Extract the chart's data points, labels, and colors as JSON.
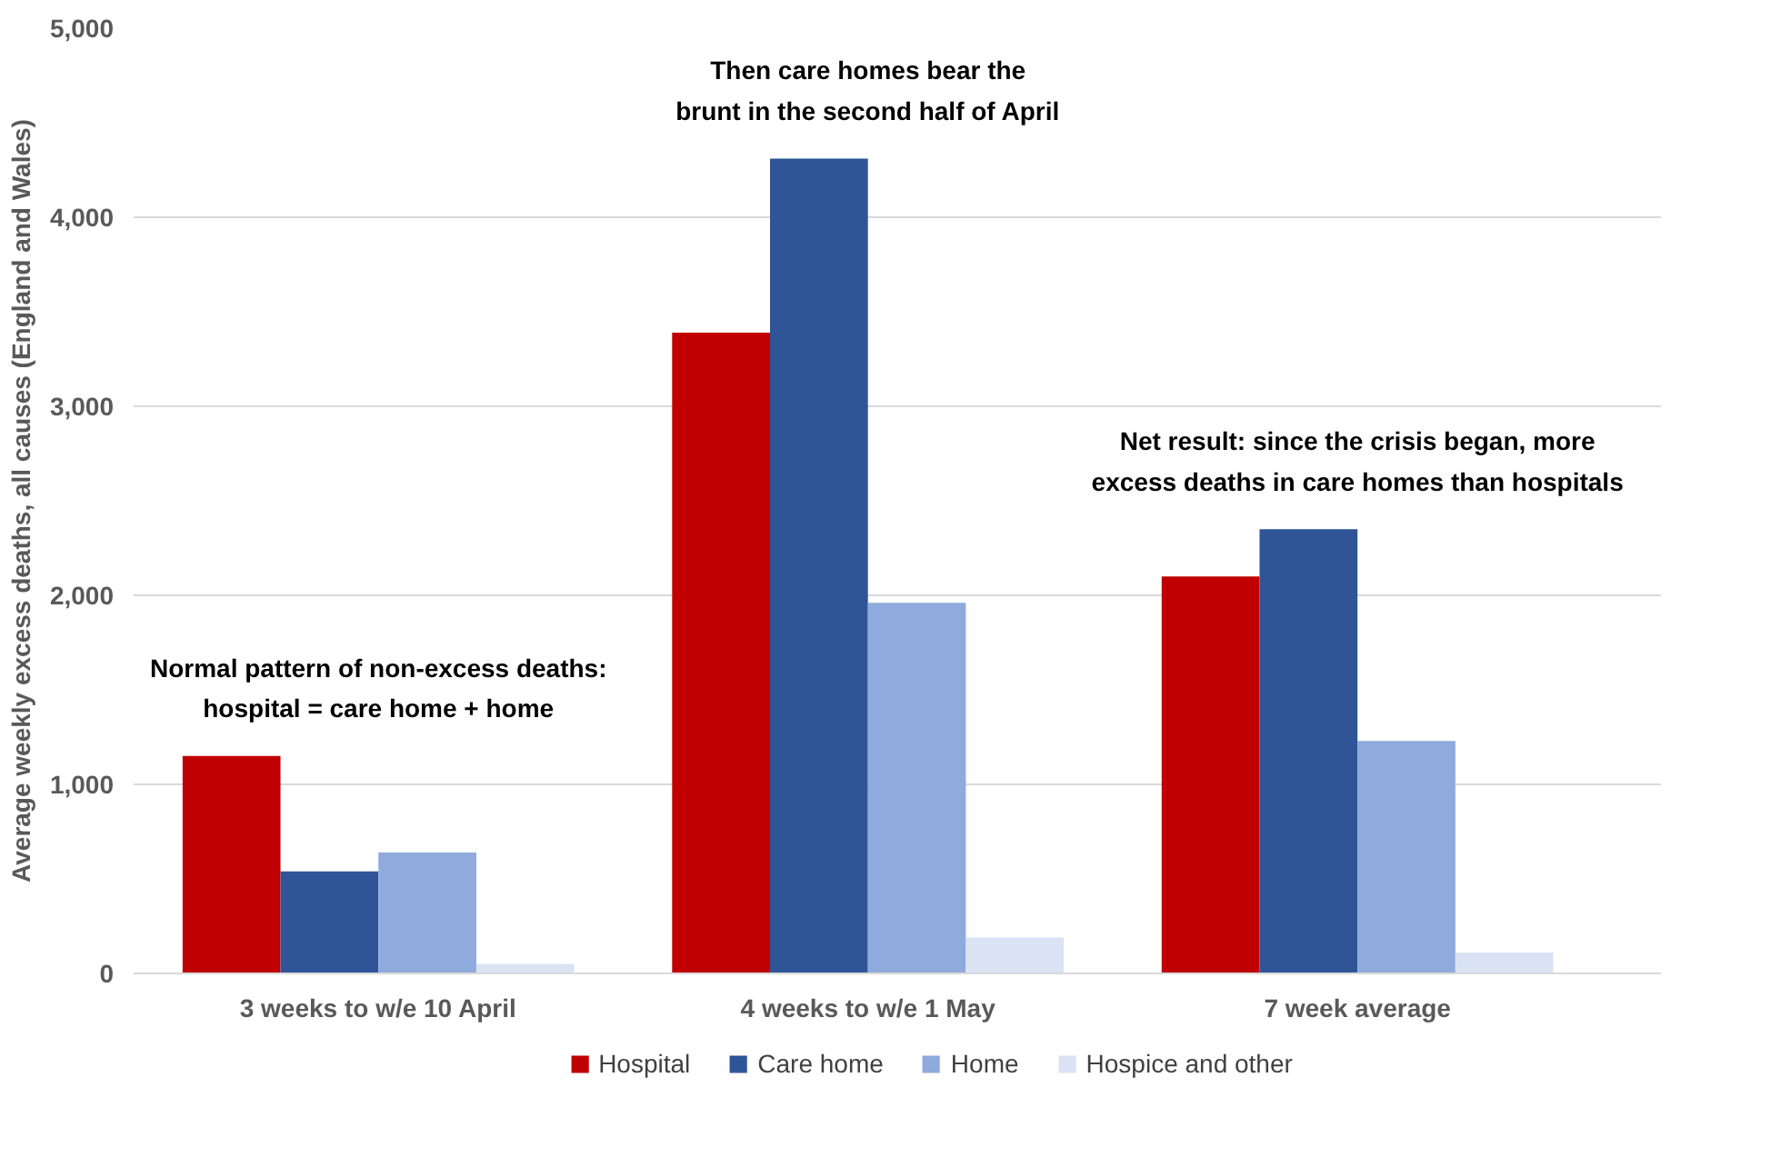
{
  "chart_data": {
    "type": "bar",
    "ylabel": "Average weekly excess deaths, all causes (England and Wales)",
    "categories": [
      "3 weeks to w/e 10 April",
      "4 weeks to w/e 1 May",
      "7 week average"
    ],
    "series": [
      {
        "name": "Hospital",
        "color": "#c00000",
        "values": [
          1150,
          3390,
          2100
        ]
      },
      {
        "name": "Care home",
        "color": "#2f5597",
        "values": [
          540,
          4310,
          2350
        ]
      },
      {
        "name": "Home",
        "color": "#8faadc",
        "values": [
          640,
          1960,
          1230
        ]
      },
      {
        "name": "Hospice and other",
        "color": "#dae3f3",
        "values": [
          50,
          190,
          110
        ]
      }
    ],
    "ylim": [
      0,
      5000
    ],
    "yticks": [
      {
        "value": 0,
        "label": "0"
      },
      {
        "value": 1000,
        "label": "1,000"
      },
      {
        "value": 2000,
        "label": "2,000"
      },
      {
        "value": 3000,
        "label": "3,000"
      },
      {
        "value": 4000,
        "label": "4,000"
      },
      {
        "value": 5000,
        "label": "5,000"
      }
    ],
    "grid": "y",
    "legend": "bottom",
    "annotations": [
      "Normal pattern of non-excess deaths:\nhospital = care home + home",
      "Then care homes bear the\nbrunt in the second half of April",
      "Net result: since the crisis began, more\nexcess deaths in care homes than hospitals"
    ]
  }
}
